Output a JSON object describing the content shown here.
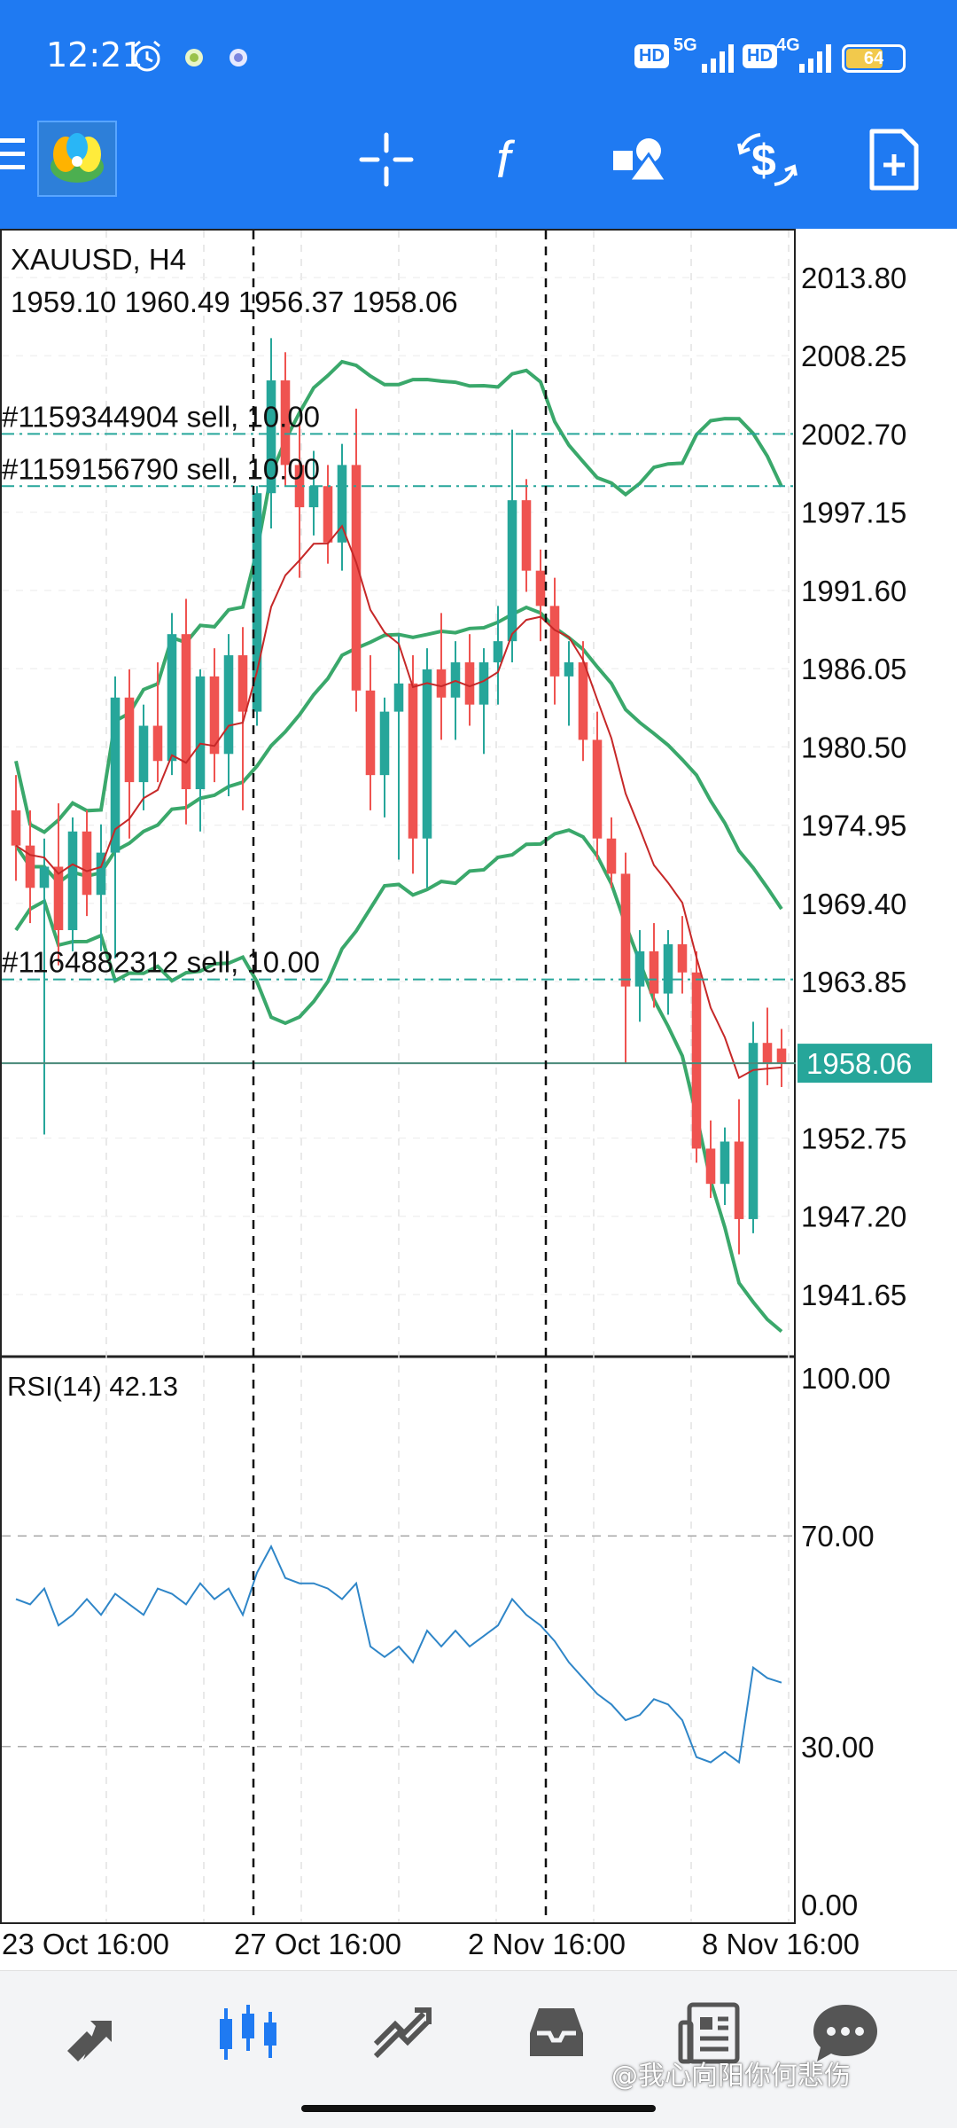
{
  "status_bar": {
    "time": "12:21",
    "network1": "5G",
    "network2": "4G",
    "hd": "HD",
    "battery_percent": "64"
  },
  "toolbar": {
    "icons": [
      "menu-icon",
      "app-logo",
      "crosshair-icon",
      "indicator-function-icon",
      "objects-icon",
      "trade-dollar-icon",
      "new-order-icon"
    ]
  },
  "chart": {
    "symbol_timeframe": "XAUUSD, H4",
    "ohlc_line": "1959.10 1960.49 1956.37 1958.06",
    "orders": [
      {
        "label": "#1159344904 sell, 10.00",
        "price": 2002.7
      },
      {
        "label": "#1159156790 sell, 10.00",
        "price": 1999.0
      },
      {
        "label": "#1164882312 sell, 10.00",
        "price": 1964.0
      }
    ],
    "price_axis": [
      "2013.80",
      "2008.25",
      "2002.70",
      "1997.15",
      "1991.60",
      "1986.05",
      "1980.50",
      "1974.95",
      "1969.40",
      "1963.85",
      "1952.75",
      "1947.20",
      "1941.65"
    ],
    "current_price": "1958.06",
    "current_price_value": 1958.06,
    "rsi_label": "RSI(14) 42.13",
    "rsi_axis": [
      "100.00",
      "70.00",
      "30.00",
      "0.00"
    ],
    "time_axis": [
      "23 Oct 16:00",
      "27 Oct 16:00",
      "2 Nov 16:00",
      "8 Nov 16:00"
    ],
    "colors": {
      "bull": "#26a69a",
      "bear": "#ef5350",
      "bands": "#3aa86b",
      "ma": "#c62828",
      "rsi": "#2f86c8",
      "price_tag": "#26a69a",
      "order_line": "#26a69a"
    }
  },
  "chart_data": {
    "type": "candlestick",
    "ohlc": [
      [
        1976.0,
        1978.5,
        1971.0,
        1973.5
      ],
      [
        1973.5,
        1976.0,
        1968.0,
        1970.5
      ],
      [
        1970.5,
        1974.0,
        1953.0,
        1972.0
      ],
      [
        1972.0,
        1976.5,
        1965.0,
        1967.5
      ],
      [
        1967.5,
        1975.5,
        1966.0,
        1974.5
      ],
      [
        1974.5,
        1976.0,
        1968.5,
        1970.0
      ],
      [
        1970.0,
        1975.0,
        1966.0,
        1973.0
      ],
      [
        1973.0,
        1985.5,
        1965.5,
        1984.0
      ],
      [
        1984.0,
        1986.0,
        1974.0,
        1978.0
      ],
      [
        1978.0,
        1983.5,
        1976.0,
        1982.0
      ],
      [
        1982.0,
        1986.5,
        1978.0,
        1979.5
      ],
      [
        1979.5,
        1990.0,
        1978.5,
        1988.5
      ],
      [
        1988.5,
        1991.0,
        1975.0,
        1977.5
      ],
      [
        1977.5,
        1986.0,
        1974.5,
        1985.5
      ],
      [
        1985.5,
        1987.5,
        1978.0,
        1980.0
      ],
      [
        1980.0,
        1988.5,
        1977.0,
        1987.0
      ],
      [
        1987.0,
        1989.0,
        1976.0,
        1983.0
      ],
      [
        1983.0,
        1999.0,
        1982.0,
        1998.5
      ],
      [
        1998.5,
        2009.5,
        1996.0,
        2006.5
      ],
      [
        2006.5,
        2008.5,
        1999.0,
        2000.5
      ],
      [
        2000.5,
        2003.5,
        1992.5,
        1997.5
      ],
      [
        1997.5,
        2001.5,
        1995.5,
        1999.0
      ],
      [
        1999.0,
        2000.5,
        1993.5,
        1995.0
      ],
      [
        1995.0,
        2002.0,
        1993.0,
        2000.5
      ],
      [
        2000.5,
        2004.5,
        1983.0,
        1984.5
      ],
      [
        1984.5,
        1987.0,
        1976.0,
        1978.5
      ],
      [
        1978.5,
        1984.0,
        1975.5,
        1983.0
      ],
      [
        1983.0,
        1988.5,
        1972.5,
        1985.0
      ],
      [
        1985.0,
        1987.0,
        1971.5,
        1974.0
      ],
      [
        1974.0,
        1987.5,
        1970.5,
        1986.0
      ],
      [
        1986.0,
        1990.0,
        1981.0,
        1984.0
      ],
      [
        1984.0,
        1988.0,
        1981.0,
        1986.5
      ],
      [
        1986.5,
        1988.5,
        1982.0,
        1983.5
      ],
      [
        1983.5,
        1987.5,
        1980.0,
        1986.5
      ],
      [
        1986.5,
        1990.5,
        1983.5,
        1988.0
      ],
      [
        1988.0,
        2003.0,
        1986.5,
        1998.0
      ],
      [
        1998.0,
        1999.5,
        1991.5,
        1993.0
      ],
      [
        1993.0,
        1994.5,
        1988.0,
        1990.5
      ],
      [
        1990.5,
        1992.5,
        1983.5,
        1985.5
      ],
      [
        1985.5,
        1988.0,
        1982.0,
        1986.5
      ],
      [
        1986.5,
        1988.0,
        1979.5,
        1981.0
      ],
      [
        1981.0,
        1983.0,
        1972.5,
        1974.0
      ],
      [
        1974.0,
        1975.5,
        1970.5,
        1971.5
      ],
      [
        1971.5,
        1973.0,
        1958.0,
        1963.5
      ],
      [
        1963.5,
        1967.5,
        1961.0,
        1966.0
      ],
      [
        1966.0,
        1968.0,
        1962.0,
        1963.0
      ],
      [
        1963.0,
        1967.5,
        1961.5,
        1966.5
      ],
      [
        1966.5,
        1968.5,
        1963.0,
        1964.5
      ],
      [
        1964.5,
        1966.0,
        1951.0,
        1952.0
      ],
      [
        1952.0,
        1954.0,
        1948.5,
        1949.5
      ],
      [
        1949.5,
        1953.5,
        1948.0,
        1952.5
      ],
      [
        1952.5,
        1955.5,
        1944.5,
        1947.0
      ],
      [
        1947.0,
        1961.0,
        1946.0,
        1959.5
      ],
      [
        1959.5,
        1962.0,
        1956.5,
        1958.0
      ],
      [
        1959.1,
        1960.49,
        1956.37,
        1958.06
      ]
    ],
    "rsi": [
      58,
      57,
      60,
      53,
      55,
      58,
      55,
      59,
      57,
      55,
      60,
      59,
      57,
      61,
      58,
      60,
      55,
      63,
      68,
      62,
      61,
      61,
      60,
      58,
      61,
      49,
      47,
      49,
      46,
      52,
      49,
      52,
      49,
      51,
      53,
      58,
      55,
      53,
      50,
      46,
      43,
      40,
      38,
      35,
      36,
      39,
      38,
      35,
      28,
      27,
      29,
      27,
      45,
      43,
      42.13
    ],
    "price_ylim": [
      1938,
      2016
    ],
    "rsi_ylim": [
      0,
      100
    ]
  },
  "bottom_nav": {
    "items": [
      "quotes-icon",
      "chart-icon",
      "trade-icon",
      "history-icon",
      "news-icon",
      "messages-icon"
    ],
    "active": "chart-icon"
  },
  "watermark": "@我心向阳你何悲伤"
}
